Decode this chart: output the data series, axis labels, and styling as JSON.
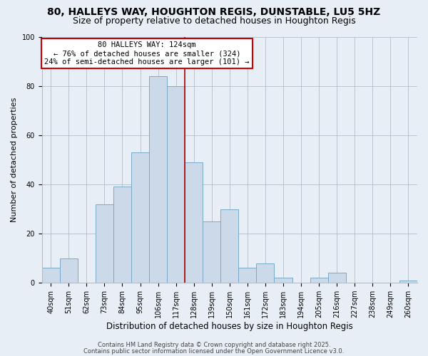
{
  "title": "80, HALLEYS WAY, HOUGHTON REGIS, DUNSTABLE, LU5 5HZ",
  "subtitle": "Size of property relative to detached houses in Houghton Regis",
  "xlabel": "Distribution of detached houses by size in Houghton Regis",
  "ylabel": "Number of detached properties",
  "bar_labels": [
    "40sqm",
    "51sqm",
    "62sqm",
    "73sqm",
    "84sqm",
    "95sqm",
    "106sqm",
    "117sqm",
    "128sqm",
    "139sqm",
    "150sqm",
    "161sqm",
    "172sqm",
    "183sqm",
    "194sqm",
    "205sqm",
    "216sqm",
    "227sqm",
    "238sqm",
    "249sqm",
    "260sqm"
  ],
  "bar_values": [
    6,
    10,
    0,
    32,
    39,
    53,
    84,
    80,
    49,
    25,
    30,
    6,
    8,
    2,
    0,
    2,
    4,
    0,
    0,
    0,
    1
  ],
  "bar_color": "#ccd9e8",
  "bar_edgecolor": "#7aaac8",
  "vline_x_idx": 7.5,
  "vline_color": "#aa0000",
  "ylim": [
    0,
    100
  ],
  "annotation_title": "80 HALLEYS WAY: 124sqm",
  "annotation_line1": "← 76% of detached houses are smaller (324)",
  "annotation_line2": "24% of semi-detached houses are larger (101) →",
  "footer1": "Contains HM Land Registry data © Crown copyright and database right 2025.",
  "footer2": "Contains public sector information licensed under the Open Government Licence v3.0.",
  "title_fontsize": 10,
  "subtitle_fontsize": 9,
  "xlabel_fontsize": 8.5,
  "ylabel_fontsize": 8,
  "tick_fontsize": 7,
  "annotation_fontsize": 7.5,
  "footer_fontsize": 6,
  "bg_color": "#e8eef5"
}
